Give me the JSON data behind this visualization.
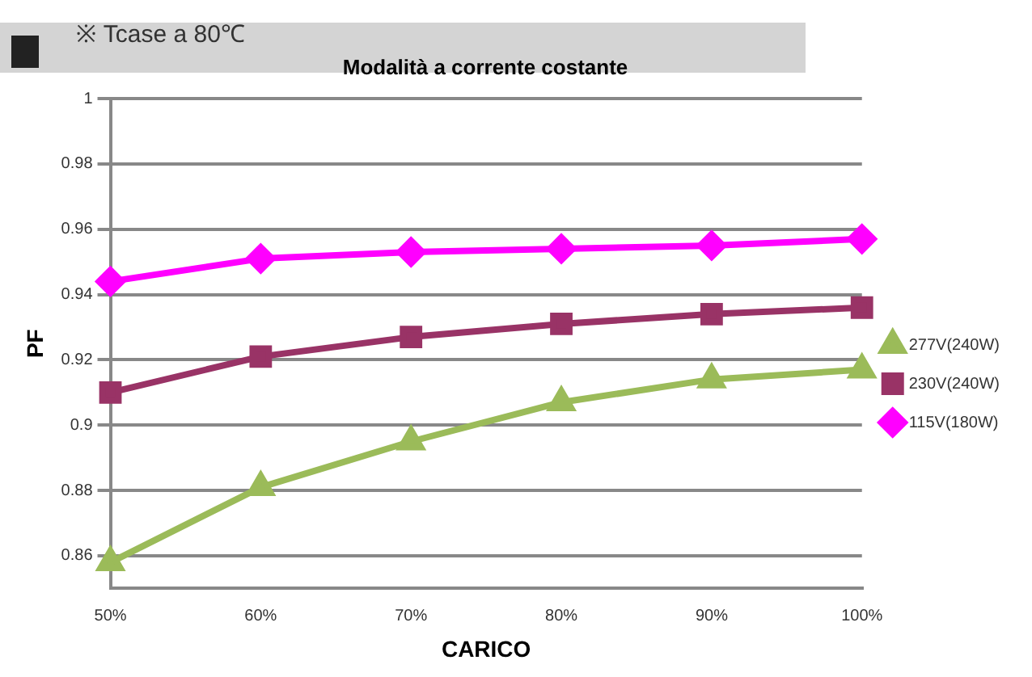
{
  "chart_data": {
    "type": "line",
    "title": "Modalità a corrente costante",
    "annotations": [
      "※ Tcase a 80℃"
    ],
    "xlabel": "CARICO",
    "ylabel": "PF",
    "categories": [
      "50%",
      "60%",
      "70%",
      "80%",
      "90%",
      "100%"
    ],
    "series": [
      {
        "name": "277V(240W)",
        "color": "#9bbb59",
        "marker": "triangle",
        "values": [
          0.858,
          0.881,
          0.895,
          0.907,
          0.914,
          0.917
        ]
      },
      {
        "name": "230V(240W)",
        "color": "#993366",
        "marker": "square",
        "values": [
          0.91,
          0.921,
          0.927,
          0.931,
          0.934,
          0.936
        ]
      },
      {
        "name": "115V(180W)",
        "color": "#ff00ff",
        "marker": "diamond",
        "values": [
          0.944,
          0.951,
          0.953,
          0.954,
          0.955,
          0.957
        ]
      }
    ],
    "ylim": [
      0.85,
      1
    ],
    "yticks": [
      0.86,
      0.88,
      0.9,
      0.92,
      0.94,
      0.96,
      0.98,
      1
    ],
    "grid": "y",
    "legend": "right",
    "line_style": "solid"
  }
}
